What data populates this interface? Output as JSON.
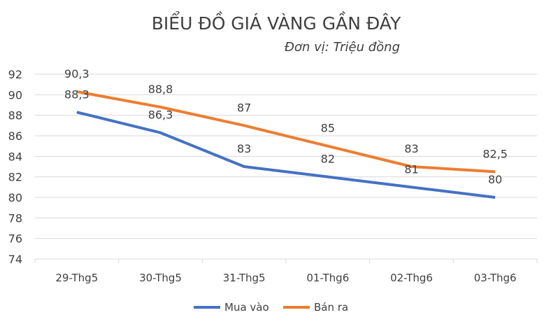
{
  "chart_data": {
    "type": "line",
    "title": "BIỂU ĐỒ GIÁ VÀNG GẦN ĐÂY",
    "subtitle": "Đơn vị: Triệu đồng",
    "categories": [
      "29-Thg5",
      "30-Thg5",
      "31-Thg5",
      "01-Thg6",
      "02-Thg6",
      "03-Thg6"
    ],
    "series": [
      {
        "name": "Mua vào",
        "color": "#4472C4",
        "values": [
          88.3,
          86.3,
          83,
          82,
          81,
          80
        ],
        "labels": [
          "88,3",
          "86,3",
          "83",
          "82",
          "81",
          "80"
        ]
      },
      {
        "name": "Bán ra",
        "color": "#ED7D31",
        "values": [
          90.3,
          88.8,
          87,
          85,
          83,
          82.5
        ],
        "labels": [
          "90,3",
          "88,8",
          "87",
          "85",
          "83",
          "82,5"
        ]
      }
    ],
    "yticks": [
      74,
      76,
      78,
      80,
      82,
      84,
      86,
      88,
      90,
      92
    ],
    "ylim": [
      74,
      92
    ],
    "xlabel": "",
    "ylabel": "",
    "grid": true,
    "legend": "bottom"
  }
}
